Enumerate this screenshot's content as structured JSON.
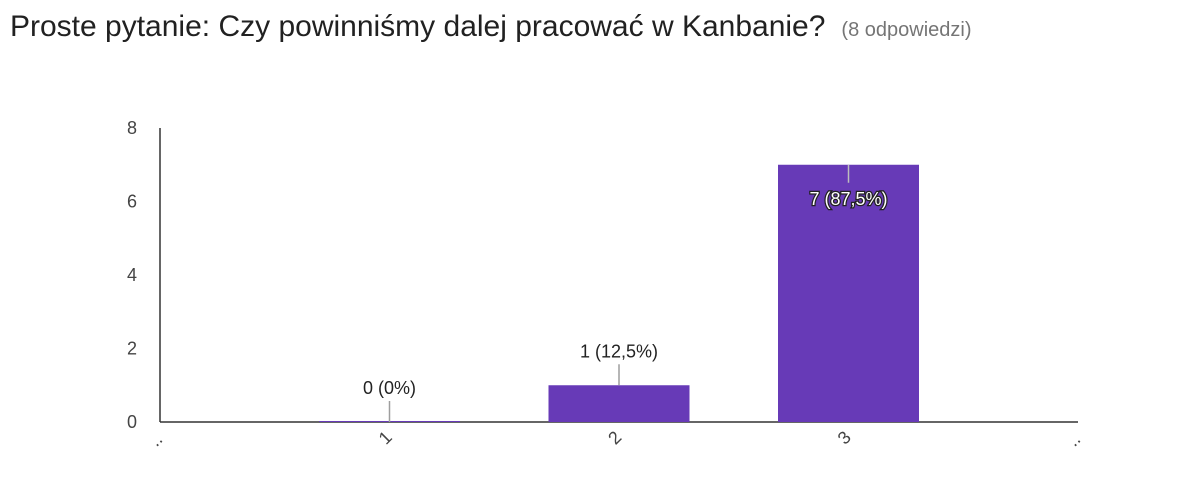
{
  "header": {
    "title": "Proste pytanie: Czy powinniśmy dalej pracować w Kanbanie?",
    "response_count": "(8 odpowiedzi)"
  },
  "colors": {
    "bar": "#673ab7",
    "axis": "#333333",
    "text": "#212121",
    "muted": "#757575"
  },
  "chart_data": {
    "type": "bar",
    "categories": [
      "1",
      "2",
      "3"
    ],
    "values": [
      0,
      1,
      7
    ],
    "data_labels": [
      "0 (0%)",
      "1 (12,5%)",
      "7 (87,5%)"
    ],
    "y_ticks": [
      "0",
      "2",
      "4",
      "6",
      "8"
    ],
    "ylim": [
      0,
      8
    ],
    "x_edge_labels": [
      "..",
      ".."
    ],
    "grid": false,
    "title": "",
    "xlabel": "",
    "ylabel": ""
  }
}
